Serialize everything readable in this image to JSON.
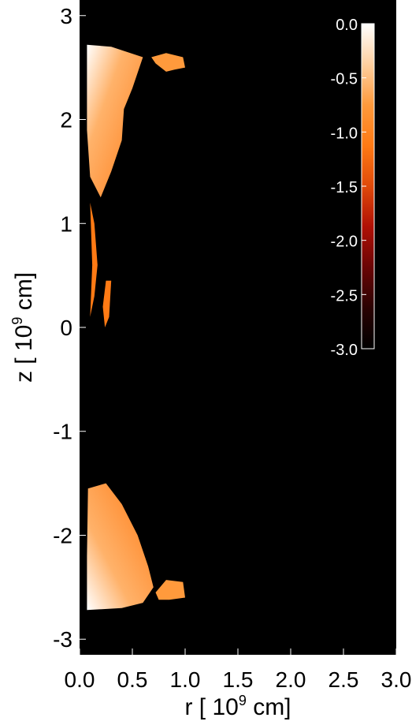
{
  "chart_data": {
    "type": "heatmap",
    "title": "",
    "xlabel": "r [ 10",
    "xlabel_exponent": "9",
    "xlabel_unit": " cm]",
    "ylabel": "z [ 10",
    "ylabel_exponent": "9",
    "ylabel_unit": " cm]",
    "xlim": [
      0.0,
      3.0
    ],
    "ylim": [
      -3.15,
      3.15
    ],
    "x_ticks": [
      {
        "value": 0.0,
        "label": "0.0"
      },
      {
        "value": 0.5,
        "label": "0.5"
      },
      {
        "value": 1.0,
        "label": "1.0"
      },
      {
        "value": 1.5,
        "label": "1.5"
      },
      {
        "value": 2.0,
        "label": "2.0"
      },
      {
        "value": 2.5,
        "label": "2.5"
      },
      {
        "value": 3.0,
        "label": "3.0"
      }
    ],
    "y_ticks": [
      {
        "value": 3,
        "label": "3"
      },
      {
        "value": 2,
        "label": "2"
      },
      {
        "value": 1,
        "label": "1"
      },
      {
        "value": 0,
        "label": "0"
      },
      {
        "value": -1,
        "label": "-1"
      },
      {
        "value": -2,
        "label": "-2"
      },
      {
        "value": -3,
        "label": "-3"
      }
    ],
    "colorbar": {
      "range": [
        -3.0,
        0.0
      ],
      "placement": "top-right inside plot",
      "ticks": [
        {
          "value": 0.0,
          "label": "0.0"
        },
        {
          "value": -0.5,
          "label": "-0.5"
        },
        {
          "value": -1.0,
          "label": "-1.0"
        },
        {
          "value": -1.5,
          "label": "-1.5"
        },
        {
          "value": -2.0,
          "label": "-2.0"
        },
        {
          "value": -2.5,
          "label": "-2.5"
        },
        {
          "value": -3.0,
          "label": "-3.0"
        }
      ],
      "stops": [
        "#ffffff",
        "#ffd0a0",
        "#ff9a3c",
        "#ff7a14",
        "#e04a0a",
        "#b01005",
        "#6a0505",
        "#2a0202",
        "#000000"
      ]
    },
    "background_color": "#000000",
    "regions": [
      {
        "name": "upper-lobe",
        "value": -0.8,
        "outline": [
          [
            0.07,
            2.72
          ],
          [
            0.3,
            2.7
          ],
          [
            0.6,
            2.6
          ],
          [
            0.5,
            2.3
          ],
          [
            0.42,
            2.1
          ],
          [
            0.4,
            1.8
          ],
          [
            0.3,
            1.5
          ],
          [
            0.2,
            1.25
          ],
          [
            0.1,
            1.45
          ],
          [
            0.07,
            1.9
          ]
        ]
      },
      {
        "name": "upper-blob",
        "value": -0.85,
        "outline": [
          [
            0.68,
            2.6
          ],
          [
            0.82,
            2.64
          ],
          [
            0.98,
            2.6
          ],
          [
            1.0,
            2.5
          ],
          [
            0.9,
            2.48
          ],
          [
            0.82,
            2.46
          ],
          [
            0.72,
            2.54
          ]
        ]
      },
      {
        "name": "lower-lobe",
        "value": -0.8,
        "outline": [
          [
            0.08,
            -1.55
          ],
          [
            0.25,
            -1.5
          ],
          [
            0.4,
            -1.7
          ],
          [
            0.55,
            -2.0
          ],
          [
            0.65,
            -2.3
          ],
          [
            0.7,
            -2.5
          ],
          [
            0.6,
            -2.65
          ],
          [
            0.4,
            -2.7
          ],
          [
            0.07,
            -2.72
          ],
          [
            0.07,
            -2.2
          ]
        ]
      },
      {
        "name": "lower-blob",
        "value": -0.85,
        "outline": [
          [
            0.72,
            -2.55
          ],
          [
            0.82,
            -2.43
          ],
          [
            0.98,
            -2.45
          ],
          [
            1.0,
            -2.6
          ],
          [
            0.85,
            -2.62
          ],
          [
            0.75,
            -2.62
          ]
        ]
      },
      {
        "name": "mid-filament-1",
        "value": -1.0,
        "outline": [
          [
            0.1,
            1.2
          ],
          [
            0.14,
            1.0
          ],
          [
            0.17,
            0.6
          ],
          [
            0.14,
            0.3
          ],
          [
            0.1,
            0.1
          ],
          [
            0.12,
            0.6
          ]
        ]
      },
      {
        "name": "mid-filament-2",
        "value": -1.0,
        "outline": [
          [
            0.25,
            0.45
          ],
          [
            0.3,
            0.45
          ],
          [
            0.28,
            0.1
          ],
          [
            0.24,
            0.0
          ],
          [
            0.22,
            0.2
          ]
        ]
      }
    ]
  }
}
